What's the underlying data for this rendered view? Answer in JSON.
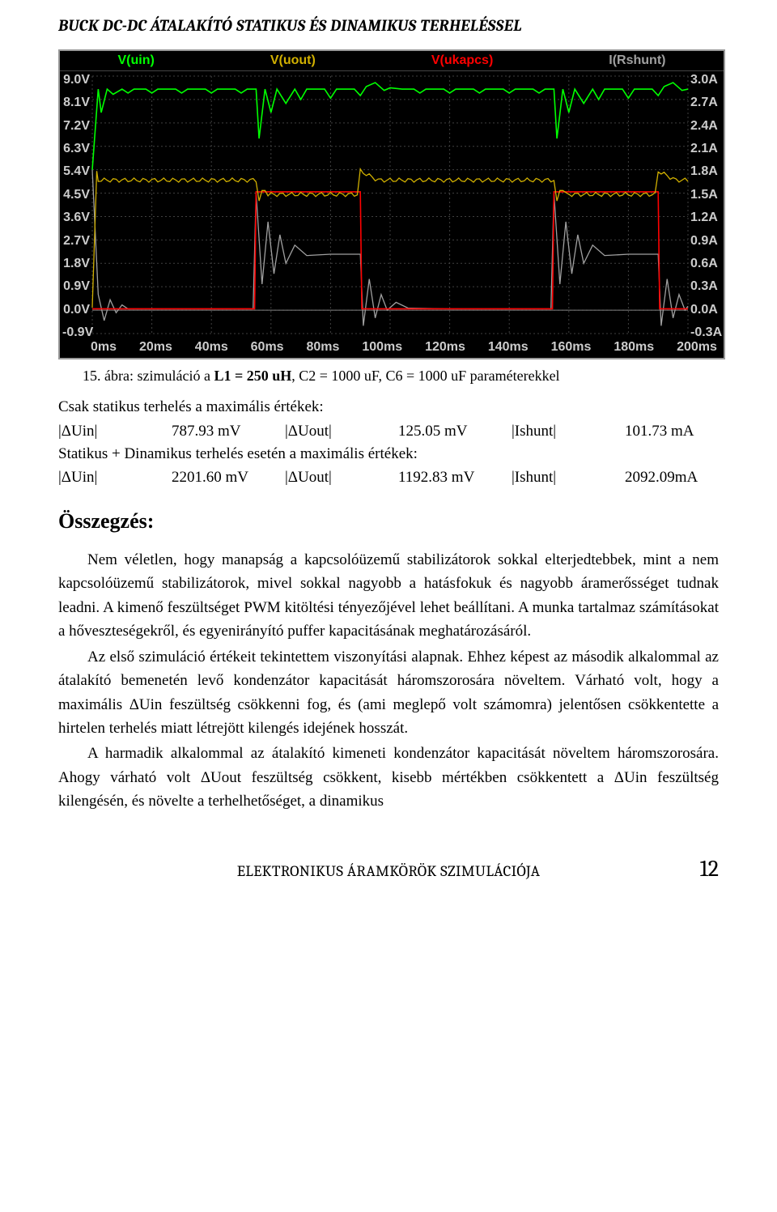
{
  "header": {
    "title": "BUCK DC-DC ÁTALAKÍTÓ STATIKUS ÉS DINAMIKUS TERHELÉSSEL"
  },
  "chart": {
    "background": "#000000",
    "grid_color": "#404040",
    "axis_text_color": "#cccccc",
    "legend": [
      {
        "label": "V(uin)",
        "color": "#00ff00"
      },
      {
        "label": "V(uout)",
        "color": "#d1b000"
      },
      {
        "label": "V(ukapcs)",
        "color": "#ff0000"
      },
      {
        "label": "I(Rshunt)",
        "color": "#a0a0a0"
      }
    ],
    "y_left_ticks": [
      "9.0V",
      "8.1V",
      "7.2V",
      "6.3V",
      "5.4V",
      "4.5V",
      "3.6V",
      "2.7V",
      "1.8V",
      "0.9V",
      "0.0V",
      "-0.9V"
    ],
    "y_right_ticks": [
      "3.0A",
      "2.7A",
      "2.4A",
      "2.1A",
      "1.8A",
      "1.5A",
      "1.2A",
      "0.9A",
      "0.6A",
      "0.3A",
      "0.0A",
      "-0.3A"
    ],
    "x_ticks": [
      "0ms",
      "20ms",
      "40ms",
      "60ms",
      "80ms",
      "100ms",
      "120ms",
      "140ms",
      "160ms",
      "180ms",
      "200ms"
    ],
    "x_range": [
      0,
      200
    ],
    "series": {
      "vuin": {
        "color": "#00ff00",
        "points": [
          [
            0,
            5.4
          ],
          [
            2,
            8.5
          ],
          [
            3,
            7.6
          ],
          [
            5,
            8.5
          ],
          [
            7,
            8.3
          ],
          [
            10,
            8.5
          ],
          [
            12,
            8.35
          ],
          [
            14,
            8.5
          ],
          [
            18,
            8.5
          ],
          [
            20,
            8.35
          ],
          [
            22,
            8.5
          ],
          [
            28,
            8.5
          ],
          [
            30,
            8.35
          ],
          [
            32,
            8.5
          ],
          [
            38,
            8.5
          ],
          [
            40,
            8.35
          ],
          [
            42,
            8.5
          ],
          [
            48,
            8.5
          ],
          [
            50,
            8.35
          ],
          [
            52,
            8.5
          ],
          [
            55,
            8.5
          ],
          [
            56,
            6.6
          ],
          [
            58,
            8.5
          ],
          [
            60,
            7.6
          ],
          [
            62,
            8.5
          ],
          [
            65,
            7.95
          ],
          [
            68,
            8.5
          ],
          [
            70,
            8.1
          ],
          [
            72,
            8.5
          ],
          [
            78,
            8.5
          ],
          [
            80,
            8.15
          ],
          [
            82,
            8.5
          ],
          [
            88,
            8.5
          ],
          [
            90,
            8.25
          ],
          [
            92,
            8.6
          ],
          [
            95,
            8.75
          ],
          [
            98,
            8.45
          ],
          [
            100,
            8.55
          ],
          [
            104,
            8.5
          ],
          [
            108,
            8.5
          ],
          [
            110,
            8.35
          ],
          [
            112,
            8.5
          ],
          [
            118,
            8.5
          ],
          [
            120,
            8.35
          ],
          [
            122,
            8.5
          ],
          [
            128,
            8.5
          ],
          [
            130,
            8.35
          ],
          [
            132,
            8.5
          ],
          [
            138,
            8.5
          ],
          [
            140,
            8.35
          ],
          [
            142,
            8.5
          ],
          [
            148,
            8.5
          ],
          [
            150,
            8.35
          ],
          [
            152,
            8.5
          ],
          [
            155,
            8.5
          ],
          [
            156,
            6.6
          ],
          [
            158,
            8.5
          ],
          [
            160,
            7.6
          ],
          [
            162,
            8.5
          ],
          [
            165,
            7.95
          ],
          [
            168,
            8.5
          ],
          [
            170,
            8.1
          ],
          [
            172,
            8.5
          ],
          [
            178,
            8.5
          ],
          [
            180,
            8.15
          ],
          [
            182,
            8.5
          ],
          [
            188,
            8.5
          ],
          [
            190,
            8.25
          ],
          [
            192,
            8.6
          ],
          [
            195,
            8.75
          ],
          [
            198,
            8.45
          ],
          [
            200,
            8.5
          ]
        ]
      },
      "vuout": {
        "color": "#d1b000",
        "points_base": {
          "y": 5.0,
          "amp": 0.08,
          "period": 3.3
        },
        "dips": [
          {
            "t0": 55,
            "t1": 90,
            "y": 4.3
          },
          {
            "t0": 155,
            "t1": 190,
            "y": 4.3
          }
        ]
      },
      "vukapcs": {
        "color": "#ff0000",
        "points": [
          [
            0,
            0.05
          ],
          [
            54.5,
            0.05
          ],
          [
            55,
            4.55
          ],
          [
            90,
            4.55
          ],
          [
            90.5,
            0.05
          ],
          [
            154.5,
            0.05
          ],
          [
            155,
            4.55
          ],
          [
            190,
            4.55
          ],
          [
            190.5,
            0.05
          ],
          [
            200,
            0.05
          ]
        ]
      },
      "irshunt": {
        "color": "#a0a0a0",
        "points": [
          [
            0,
            5.4
          ],
          [
            2,
            0.6
          ],
          [
            4,
            -0.4
          ],
          [
            6,
            0.4
          ],
          [
            8,
            -0.1
          ],
          [
            10,
            0.2
          ],
          [
            12,
            0.05
          ],
          [
            20,
            0.05
          ],
          [
            54,
            0.05
          ],
          [
            55,
            4.5
          ],
          [
            57,
            1.0
          ],
          [
            59,
            3.4
          ],
          [
            61,
            1.4
          ],
          [
            63,
            2.9
          ],
          [
            65,
            1.8
          ],
          [
            68,
            2.5
          ],
          [
            72,
            2.1
          ],
          [
            80,
            2.15
          ],
          [
            88,
            2.15
          ],
          [
            90,
            2.15
          ],
          [
            91,
            -0.6
          ],
          [
            93,
            1.2
          ],
          [
            95,
            -0.3
          ],
          [
            97,
            0.6
          ],
          [
            99,
            0.0
          ],
          [
            102,
            0.3
          ],
          [
            106,
            0.08
          ],
          [
            120,
            0.05
          ],
          [
            154,
            0.05
          ],
          [
            155,
            4.5
          ],
          [
            157,
            1.0
          ],
          [
            159,
            3.4
          ],
          [
            161,
            1.4
          ],
          [
            163,
            2.9
          ],
          [
            165,
            1.8
          ],
          [
            168,
            2.5
          ],
          [
            172,
            2.1
          ],
          [
            180,
            2.15
          ],
          [
            188,
            2.15
          ],
          [
            190,
            2.15
          ],
          [
            191,
            -0.6
          ],
          [
            193,
            1.2
          ],
          [
            195,
            -0.3
          ],
          [
            197,
            0.6
          ],
          [
            199,
            0.0
          ],
          [
            200,
            0.15
          ]
        ]
      }
    }
  },
  "caption": {
    "num": "15.",
    "lead": " ábra: szimuláció a ",
    "params": "L1 = 250 uH",
    "rest": ", C2 = 1000 uF, C6 = 1000 uF paraméterekkel"
  },
  "static_heading": "Csak statikus terhelés a maximális értékek:",
  "static_row": {
    "c1": "|ΔUin|",
    "c2": "787.93 mV",
    "c3": "|ΔUout|",
    "c4": "125.05 mV",
    "c5": "|Ishunt|",
    "c6": "101.73 mA"
  },
  "dyn_heading": "Statikus + Dinamikus terhelés esetén a maximális értékek:",
  "dyn_row": {
    "c1": "|ΔUin|",
    "c2": "2201.60 mV",
    "c3": "|ΔUout|",
    "c4": "1192.83 mV",
    "c5": "|Ishunt|",
    "c6": "2092.09mA"
  },
  "section_title": "Összegzés:",
  "paragraphs": [
    "Nem véletlen, hogy manapság a kapcsolóüzemű stabilizátorok sokkal elterjedtebbek, mint a nem kapcsolóüzemű stabilizátorok, mivel sokkal nagyobb a hatásfokuk és nagyobb áramerősséget tudnak leadni. A kimenő feszültséget PWM kitöltési tényezőjével lehet beállítani. A munka tartalmaz számításokat a hőveszteségekről, és egyenirányító puffer kapacitásának meghatározásáról.",
    "Az első szimuláció értékeit tekintettem viszonyítási alapnak. Ehhez képest az második alkalommal az átalakító bemenetén levő kondenzátor kapacitását háromszorosára növeltem. Várható volt, hogy a maximális ΔUin feszültség csökkenni fog, és (ami meglepő volt számomra) jelentősen csökkentette a hirtelen terhelés miatt létrejött kilengés idejének hosszát.",
    "A harmadik alkalommal az átalakító kimeneti kondenzátor kapacitását növeltem háromszorosára. Ahogy várható volt ΔUout feszültség csökkent, kisebb mértékben csökkentett a ΔUin feszültség kilengésén, és növelte a terhelhetőséget, a dinamikus"
  ],
  "footer": {
    "center": "ELEKTRONIKUS ÁRAMKÖRÖK SZIMULÁCIÓJA",
    "page": "12"
  }
}
